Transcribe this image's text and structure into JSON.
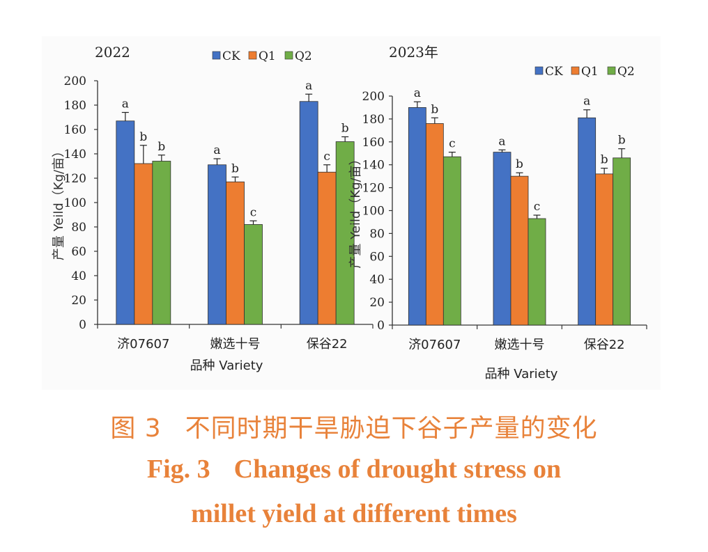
{
  "caption": {
    "cn_label": "图 3",
    "cn_text": "不同时期干旱胁迫下谷子产量的变化",
    "en_label": "Fig. 3",
    "en_line1": "Changes of drought stress on",
    "en_line2": "millet yield at different times"
  },
  "colors": {
    "CK": "#4472c4",
    "Q1": "#ed7d31",
    "Q2": "#70ad47"
  },
  "chart_data": [
    {
      "type": "bar",
      "title": "2022",
      "categories": [
        "济07607",
        "嫩选十号",
        "保谷22"
      ],
      "xlabel": "品种 Variety",
      "ylabel": "产量 Yeild（Kg/亩）",
      "ylim": [
        0,
        200
      ],
      "yticks": [
        0,
        20,
        40,
        60,
        80,
        100,
        120,
        140,
        160,
        180,
        200
      ],
      "legend": "top-center",
      "grid": false,
      "series": [
        {
          "name": "CK",
          "values": [
            167,
            131,
            183
          ],
          "errors": [
            7,
            5,
            6
          ],
          "letters": [
            "a",
            "a",
            "a"
          ]
        },
        {
          "name": "Q1",
          "values": [
            132,
            117,
            125
          ],
          "errors": [
            15,
            4,
            6
          ],
          "letters": [
            "b",
            "b",
            "c"
          ]
        },
        {
          "name": "Q2",
          "values": [
            134,
            82,
            150
          ],
          "errors": [
            5,
            3,
            4
          ],
          "letters": [
            "b",
            "c",
            "b"
          ]
        }
      ]
    },
    {
      "type": "bar",
      "title": "2023年",
      "categories": [
        "济07607",
        "嫩选十号",
        "保谷22"
      ],
      "xlabel": "品种 Variety",
      "ylabel": "产量 Yeild（Kg/亩）",
      "ylim": [
        0,
        200
      ],
      "yticks": [
        0,
        20,
        40,
        60,
        80,
        100,
        120,
        140,
        160,
        180,
        200
      ],
      "legend": "top-right",
      "grid": false,
      "series": [
        {
          "name": "CK",
          "values": [
            190,
            151,
            181
          ],
          "errors": [
            5,
            2,
            7
          ],
          "letters": [
            "a",
            "a",
            "a"
          ]
        },
        {
          "name": "Q1",
          "values": [
            176,
            130,
            132
          ],
          "errors": [
            5,
            3,
            5
          ],
          "letters": [
            "b",
            "b",
            "b"
          ]
        },
        {
          "name": "Q2",
          "values": [
            147,
            93,
            146
          ],
          "errors": [
            4,
            3,
            8
          ],
          "letters": [
            "c",
            "c",
            "b"
          ]
        }
      ]
    }
  ]
}
